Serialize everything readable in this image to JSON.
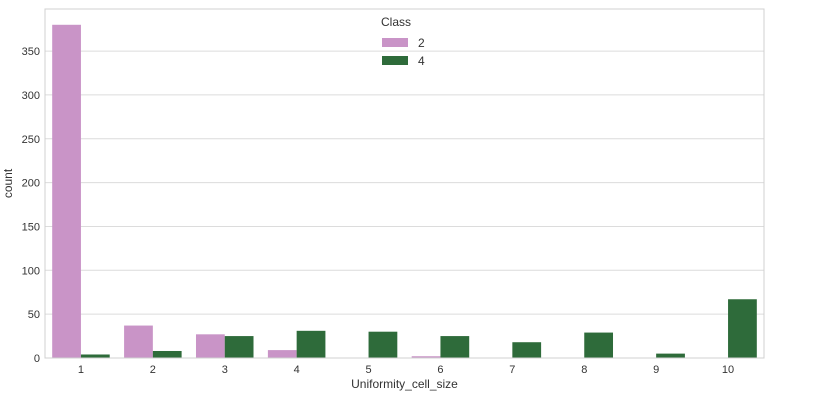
{
  "chart_data": {
    "type": "bar",
    "title": "",
    "xlabel": "Uniformity_cell_size",
    "ylabel": "count",
    "categories": [
      "1",
      "2",
      "3",
      "4",
      "5",
      "6",
      "7",
      "8",
      "9",
      "10"
    ],
    "series": [
      {
        "name": "2",
        "color": "#c994c7",
        "values": [
          380,
          37,
          27,
          9,
          0,
          2,
          0,
          0,
          0,
          0
        ]
      },
      {
        "name": "4",
        "color": "#2e6b3a",
        "values": [
          4,
          8,
          25,
          31,
          30,
          25,
          18,
          29,
          5,
          67
        ]
      }
    ],
    "ylim": [
      0,
      398
    ],
    "yticks": [
      0,
      50,
      100,
      150,
      200,
      250,
      300,
      350
    ],
    "grid": true,
    "legend": {
      "title": "Class",
      "placement": "top-center"
    }
  }
}
